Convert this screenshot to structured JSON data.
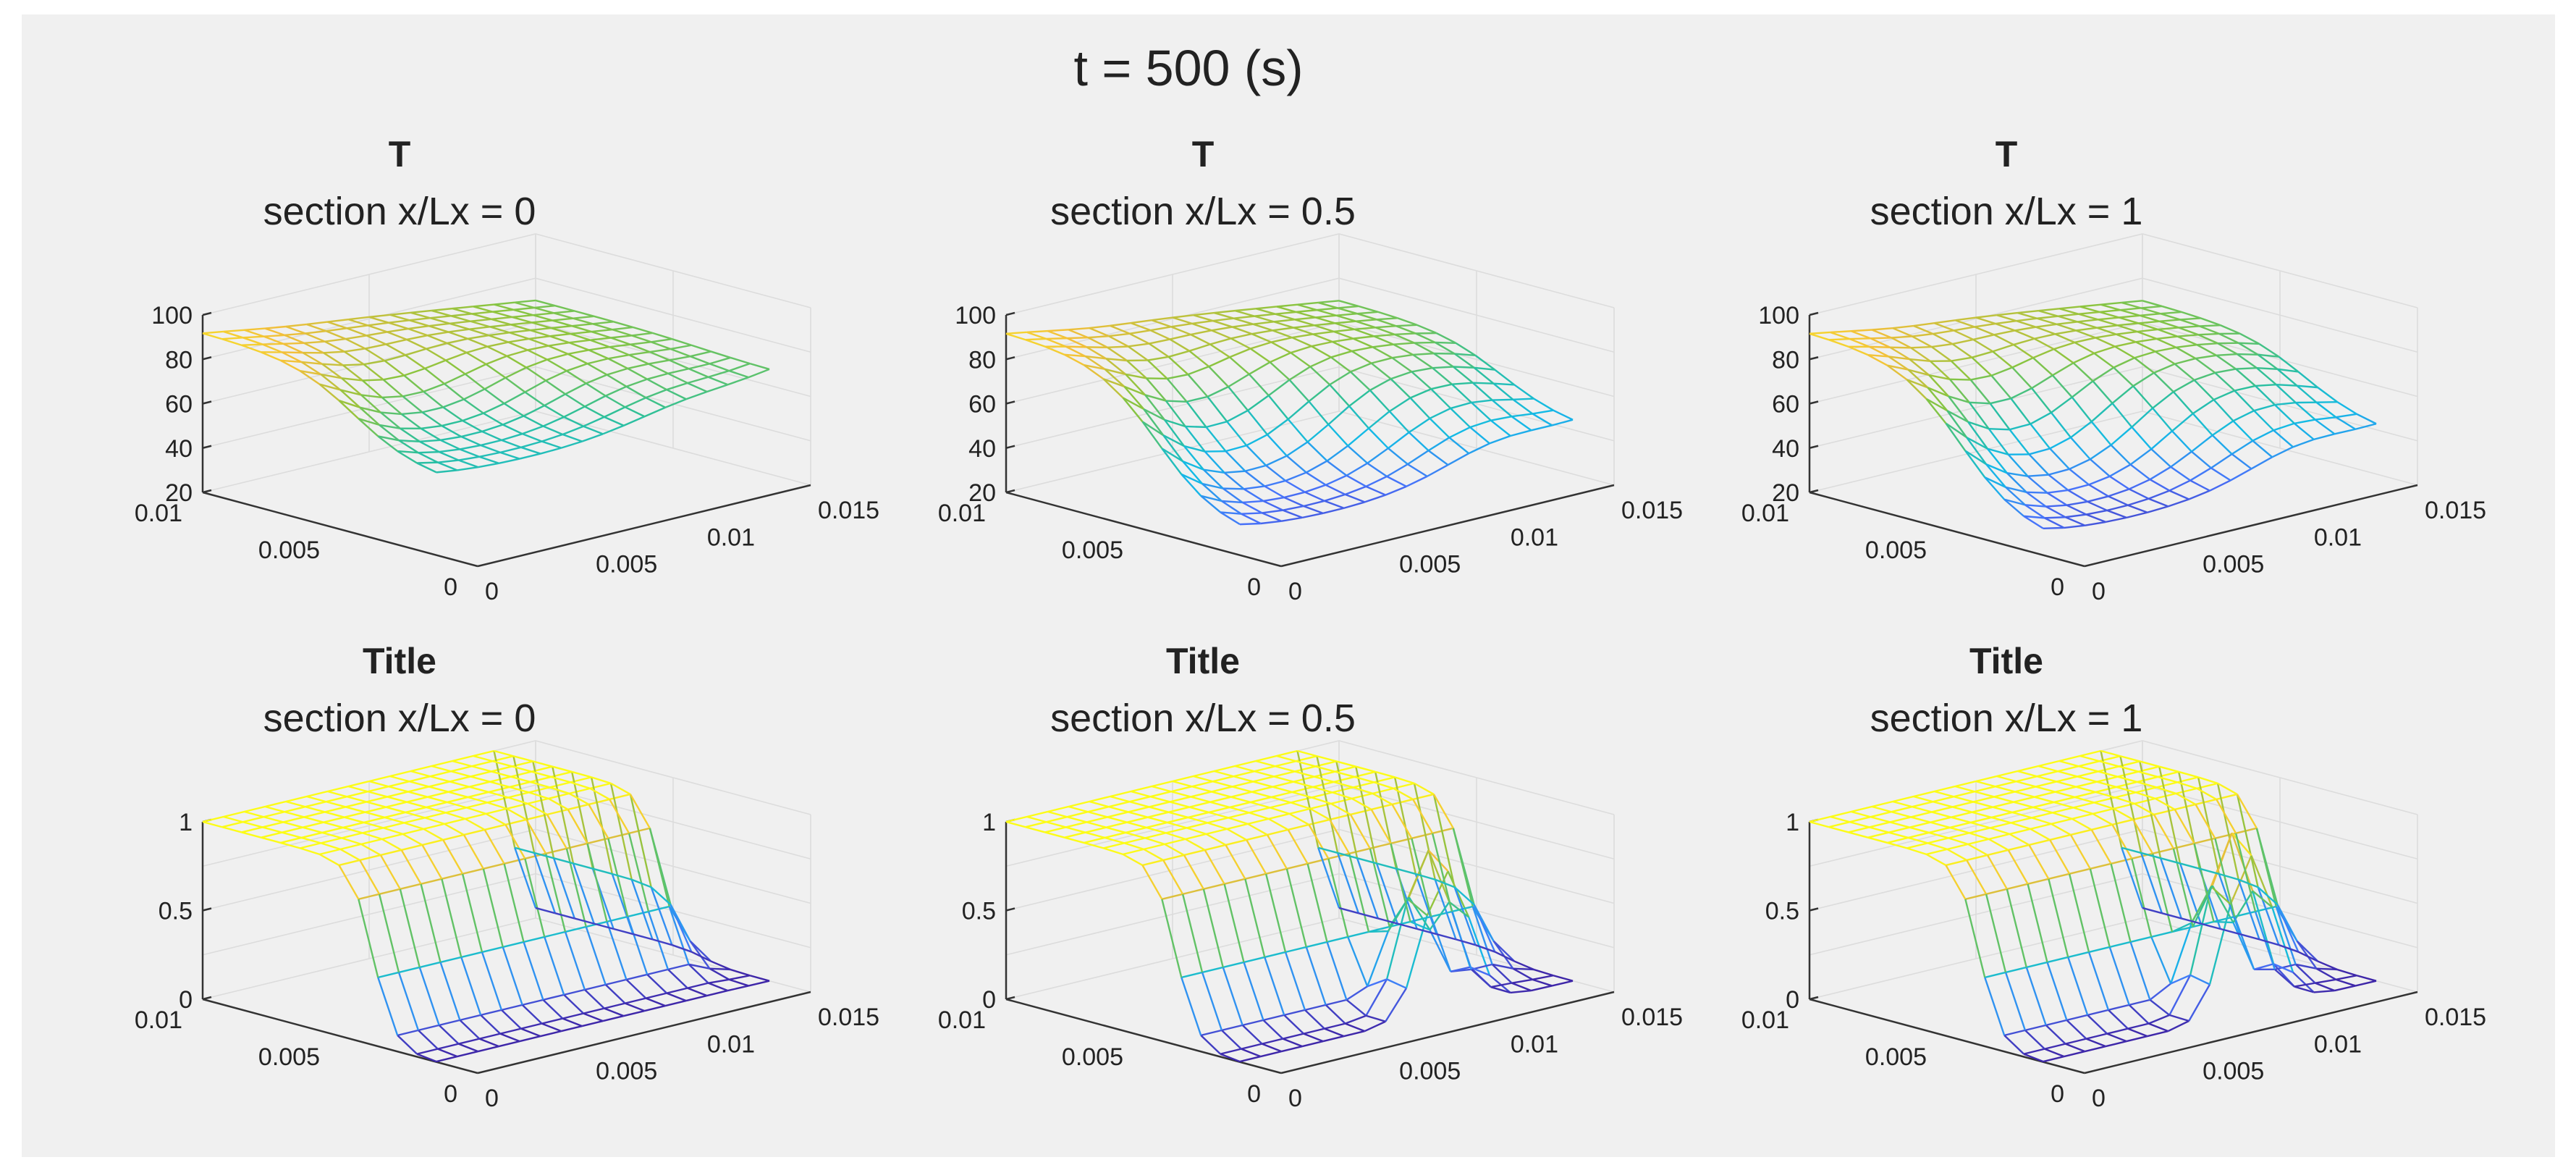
{
  "figure": {
    "title": "t = 500 (s)",
    "background": "#f0f0f0"
  },
  "colormap": [
    "#3e26a8",
    "#4772fa",
    "#13bae6",
    "#2dc09a",
    "#8bc43e",
    "#f2bf3a",
    "#fcfc17"
  ],
  "chart_data": [
    {
      "type": "surface",
      "row": 0,
      "col": 0,
      "title": "T",
      "subtitle": "section  x/Lx = 0",
      "zlim": [
        20,
        100
      ],
      "zticks": [
        "20",
        "40",
        "60",
        "80",
        "100"
      ],
      "xticks": [
        "0",
        "0.005",
        "0.01",
        "0.015"
      ],
      "yticks": [
        "0",
        "0.005",
        "0.01"
      ],
      "clim": [
        20,
        100
      ],
      "model": "temp",
      "z_min": 55
    },
    {
      "type": "surface",
      "row": 0,
      "col": 1,
      "title": "T",
      "subtitle": "section  x/Lx = 0.5",
      "zlim": [
        20,
        100
      ],
      "zticks": [
        "20",
        "40",
        "60",
        "80",
        "100"
      ],
      "xticks": [
        "0",
        "0.005",
        "0.01",
        "0.015"
      ],
      "yticks": [
        "0",
        "0.005",
        "0.01"
      ],
      "clim": [
        20,
        100
      ],
      "model": "temp",
      "z_min": 30
    },
    {
      "type": "surface",
      "row": 0,
      "col": 2,
      "title": "T",
      "subtitle": "section  x/Lx = 1",
      "zlim": [
        20,
        100
      ],
      "zticks": [
        "20",
        "40",
        "60",
        "80",
        "100"
      ],
      "xticks": [
        "0",
        "0.005",
        "0.01",
        "0.015"
      ],
      "yticks": [
        "0",
        "0.005",
        "0.01"
      ],
      "clim": [
        20,
        100
      ],
      "model": "temp",
      "z_min": 28
    },
    {
      "type": "surface",
      "row": 1,
      "col": 0,
      "title": "Title",
      "subtitle": "section  x/Lx = 0",
      "zlim": [
        0,
        1
      ],
      "zticks": [
        "0",
        "0.5",
        "1"
      ],
      "xticks": [
        "0",
        "0.005",
        "0.01",
        "0.015"
      ],
      "yticks": [
        "0",
        "0.005",
        "0.01"
      ],
      "clim": [
        0,
        1
      ],
      "model": "phase",
      "z_min": 0
    },
    {
      "type": "surface",
      "row": 1,
      "col": 1,
      "title": "Title",
      "subtitle": "section  x/Lx = 0.5",
      "zlim": [
        0,
        1
      ],
      "zticks": [
        "0",
        "0.5",
        "1"
      ],
      "xticks": [
        "0",
        "0.005",
        "0.01",
        "0.015"
      ],
      "yticks": [
        "0",
        "0.005",
        "0.01"
      ],
      "clim": [
        0,
        1
      ],
      "model": "phase",
      "z_min": 0
    },
    {
      "type": "surface",
      "row": 1,
      "col": 2,
      "title": "Title",
      "subtitle": "section  x/Lx = 1",
      "zlim": [
        0,
        1
      ],
      "zticks": [
        "0",
        "0.5",
        "1"
      ],
      "xticks": [
        "0",
        "0.005",
        "0.01",
        "0.015"
      ],
      "yticks": [
        "0",
        "0.005",
        "0.01"
      ],
      "clim": [
        0,
        1
      ],
      "model": "phase",
      "z_min": 0
    }
  ]
}
